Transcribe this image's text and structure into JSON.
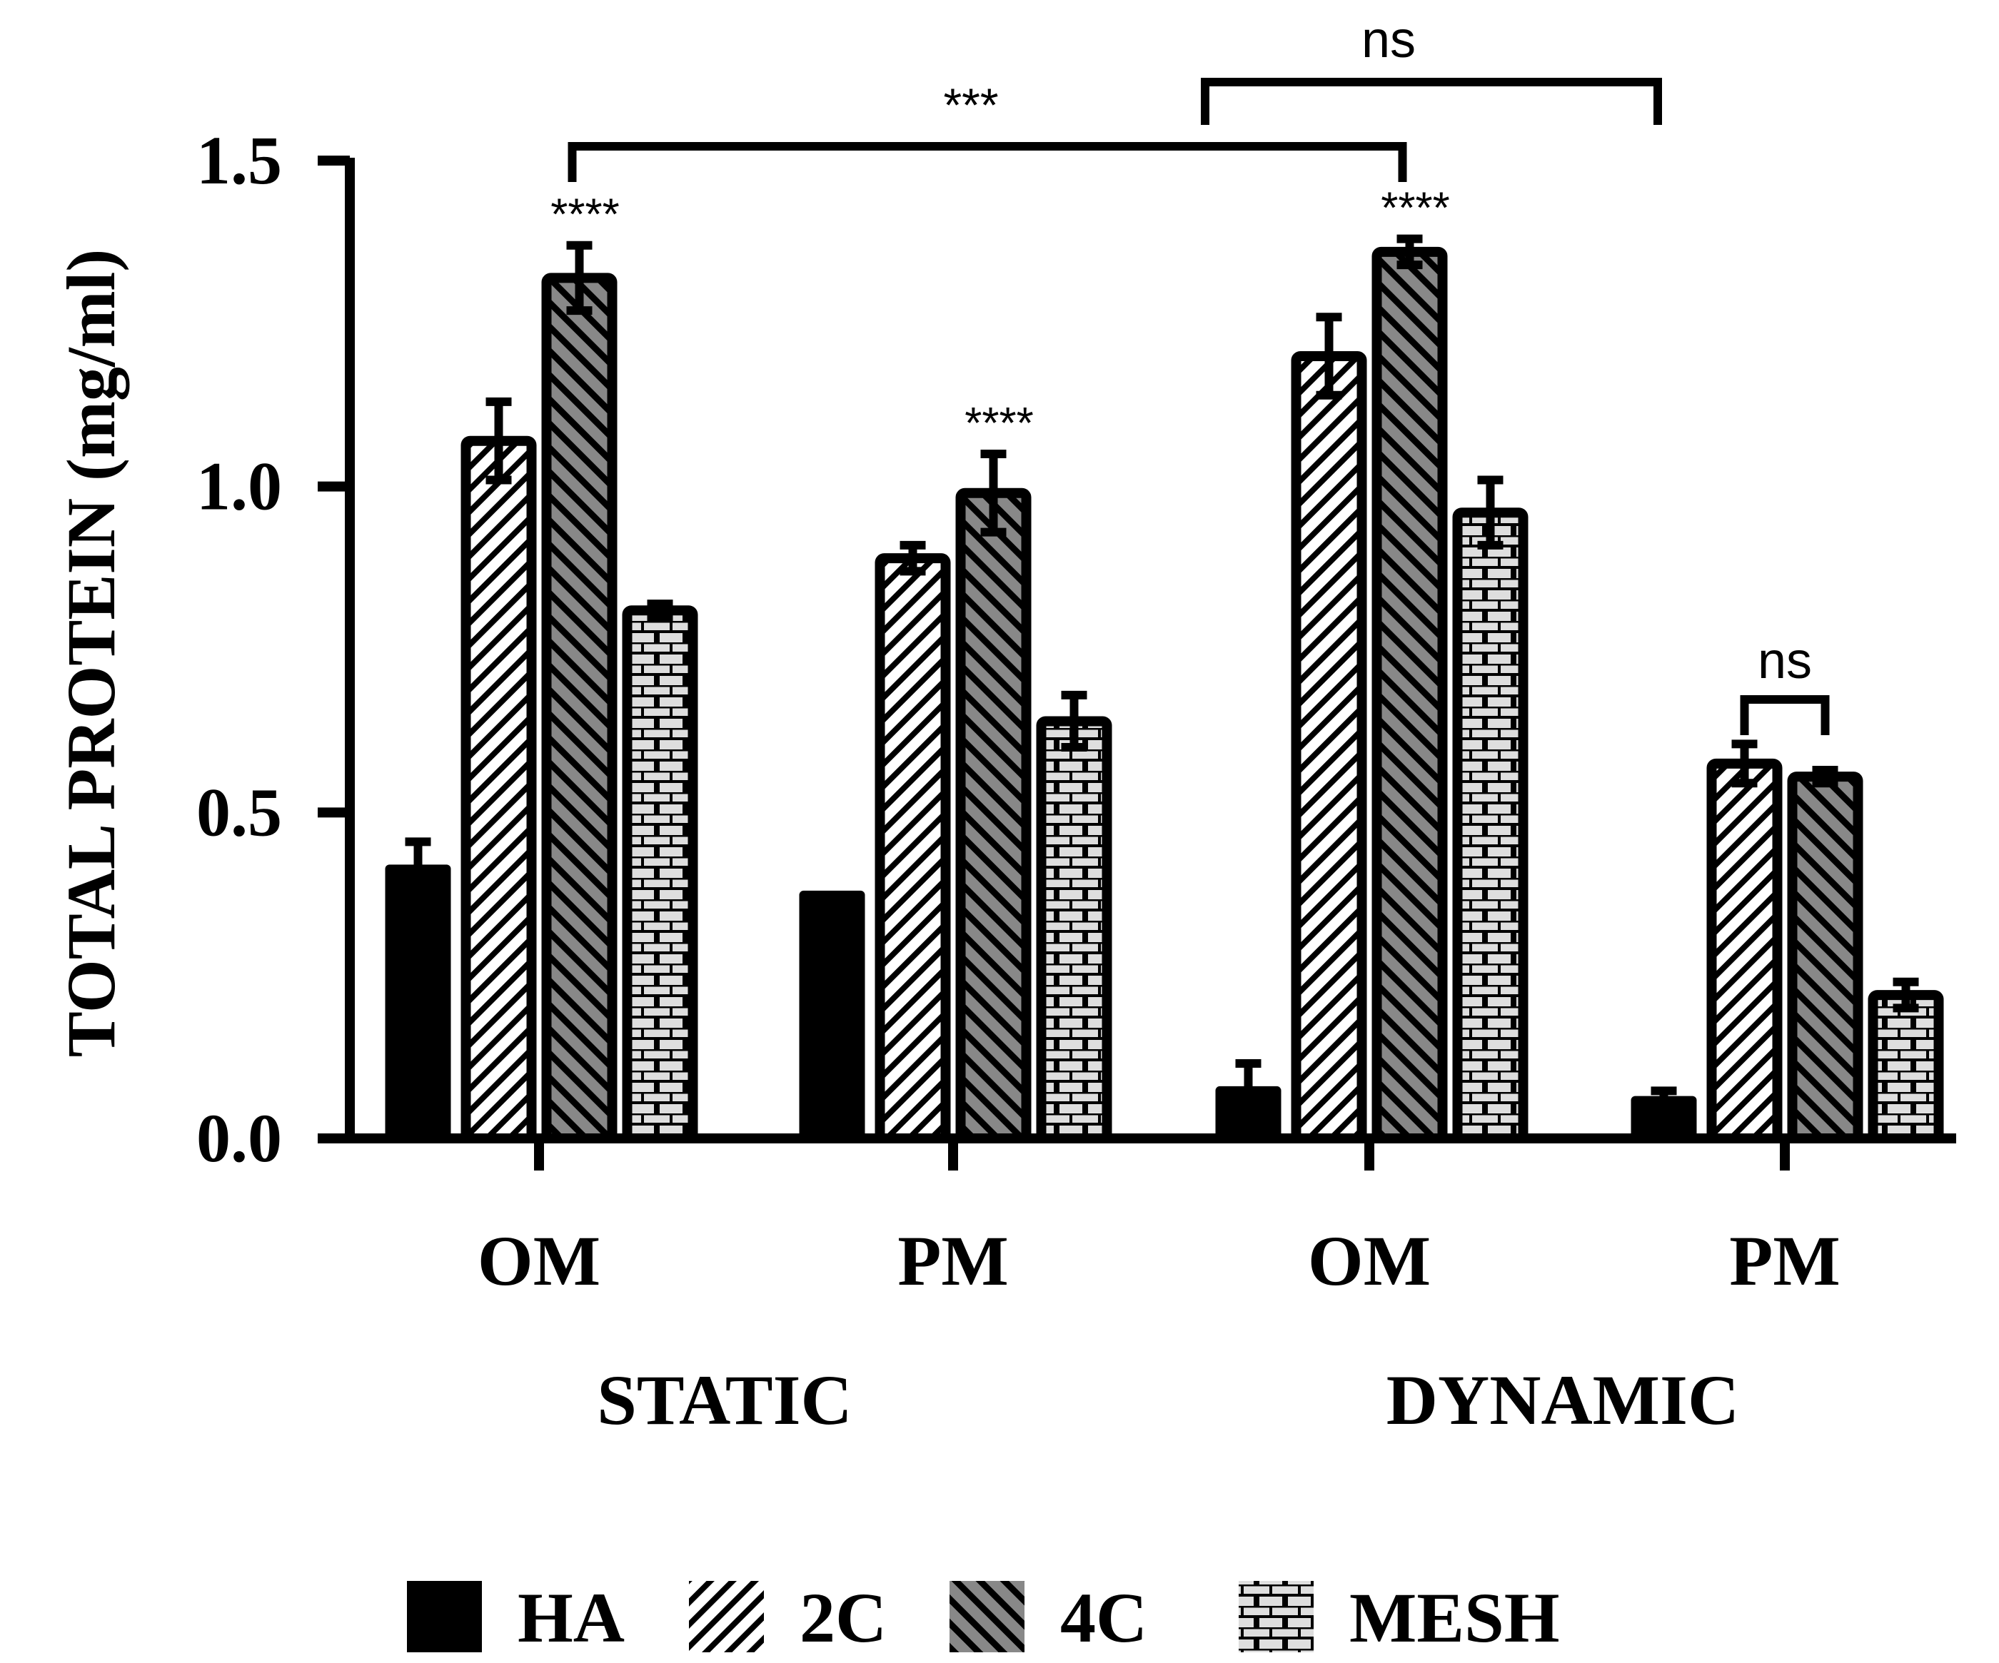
{
  "chart_data": {
    "type": "bar",
    "ylabel": "TOTAL PROTEIN (mg/ml)",
    "ylim": [
      0,
      1.5
    ],
    "yticks": [
      0.0,
      0.5,
      1.0,
      1.5
    ],
    "ytick_labels": [
      "0.0",
      "0.5",
      "1.0",
      "1.5"
    ],
    "categories": [
      "OM",
      "PM",
      "OM",
      "PM"
    ],
    "groups": [
      {
        "label": "STATIC",
        "categories": [
          0,
          1
        ]
      },
      {
        "label": "DYNAMIC",
        "categories": [
          2,
          3
        ]
      }
    ],
    "series": [
      {
        "name": "HA",
        "pattern": "solid",
        "values": [
          0.42,
          0.38,
          0.08,
          0.065
        ],
        "errors": [
          0.035,
          0.0,
          0.035,
          0.008
        ]
      },
      {
        "name": "2C",
        "pattern": "hatch2c",
        "values": [
          1.07,
          0.89,
          1.2,
          0.575
        ],
        "errors": [
          0.06,
          0.02,
          0.06,
          0.03
        ]
      },
      {
        "name": "4C",
        "pattern": "hatch4c",
        "values": [
          1.32,
          0.99,
          1.36,
          0.555
        ],
        "errors": [
          0.05,
          0.06,
          0.02,
          0.01
        ]
      },
      {
        "name": "MESH",
        "pattern": "brick",
        "values": [
          0.81,
          0.64,
          0.96,
          0.22
        ],
        "errors": [
          0.01,
          0.04,
          0.05,
          0.02
        ]
      }
    ],
    "significance": [
      {
        "type": "star",
        "label": "****",
        "series": 2,
        "category": 0
      },
      {
        "type": "star",
        "label": "****",
        "series": 2,
        "category": 1
      },
      {
        "type": "star",
        "label": "****",
        "series": 2,
        "category": 2
      },
      {
        "type": "bracket",
        "label": "***",
        "from": {
          "series": 2,
          "category": 0
        },
        "to": {
          "series": 2,
          "category": 2
        }
      },
      {
        "type": "bracket",
        "label": "ns",
        "from": {
          "series": 0,
          "category": 2
        },
        "to": {
          "series": 0,
          "category": 3
        }
      },
      {
        "type": "bracket",
        "label": "ns",
        "from": {
          "series": 1,
          "category": 3
        },
        "to": {
          "series": 2,
          "category": 3
        }
      }
    ],
    "legend": [
      "HA",
      "2C",
      "4C",
      "MESH"
    ],
    "legend_position": "bottom"
  }
}
